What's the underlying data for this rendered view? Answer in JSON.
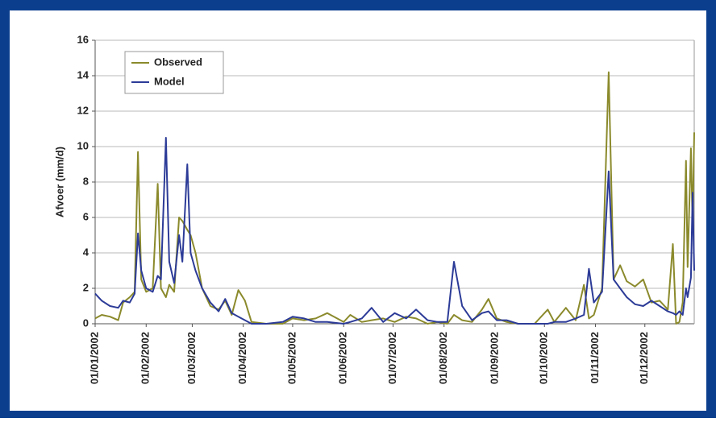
{
  "chart_data": {
    "type": "line",
    "y_label": "Afvoer (mm/d)",
    "x": [
      "01/01/2002",
      "05/01/2002",
      "10/01/2002",
      "15/01/2002",
      "18/01/2002",
      "22/01/2002",
      "25/01/2002",
      "27/01/2002",
      "29/01/2002",
      "01/02/2002",
      "05/02/2002",
      "08/02/2002",
      "10/02/2002",
      "13/02/2002",
      "15/02/2002",
      "18/02/2002",
      "21/02/2002",
      "23/02/2002",
      "26/02/2002",
      "28/02/2002",
      "03/03/2002",
      "07/03/2002",
      "12/03/2002",
      "17/03/2002",
      "21/03/2002",
      "25/03/2002",
      "29/03/2002",
      "02/04/2002",
      "06/04/2002",
      "15/04/2002",
      "25/04/2002",
      "01/05/2002",
      "08/05/2002",
      "15/05/2002",
      "22/05/2002",
      "01/06/2002",
      "05/06/2002",
      "12/06/2002",
      "18/06/2002",
      "25/06/2002",
      "02/07/2002",
      "09/07/2002",
      "15/07/2002",
      "22/07/2002",
      "28/07/2002",
      "03/08/2002",
      "07/08/2002",
      "12/08/2002",
      "18/08/2002",
      "24/08/2002",
      "28/08/2002",
      "02/09/2002",
      "08/09/2002",
      "15/09/2002",
      "25/09/2002",
      "03/10/2002",
      "07/10/2002",
      "14/10/2002",
      "20/10/2002",
      "25/10/2002",
      "28/10/2002",
      "31/10/2002",
      "05/11/2002",
      "09/11/2002",
      "12/11/2002",
      "16/11/2002",
      "20/11/2002",
      "25/11/2002",
      "30/11/2002",
      "05/12/2002",
      "10/12/2002",
      "15/12/2002",
      "18/12/2002",
      "20/12/2002",
      "22/12/2002",
      "24/12/2002",
      "26/12/2002",
      "27/12/2002",
      "29/12/2002",
      "30/12/2002",
      "31/12/2002"
    ],
    "series": [
      {
        "name": "Observed",
        "color": "#8b8a2c",
        "values": [
          0.3,
          0.5,
          0.4,
          0.2,
          1.2,
          1.5,
          1.8,
          9.7,
          2.5,
          1.8,
          2.0,
          7.9,
          2.0,
          1.5,
          2.2,
          1.8,
          6.0,
          5.8,
          5.3,
          5.0,
          4.0,
          2.0,
          1.0,
          0.8,
          1.3,
          0.5,
          1.9,
          1.3,
          0.1,
          0,
          0,
          0.3,
          0.2,
          0.3,
          0.6,
          0.1,
          0.5,
          0.1,
          0.2,
          0.3,
          0.1,
          0.4,
          0.3,
          0,
          0.1,
          0,
          0.5,
          0.2,
          0.1,
          0.8,
          1.4,
          0.3,
          0.1,
          0,
          0,
          0.8,
          0.1,
          0.9,
          0.2,
          2.2,
          0.3,
          0.5,
          2.0,
          14.2,
          2.5,
          3.3,
          2.4,
          2.1,
          2.5,
          1.2,
          1.3,
          0.8,
          4.5,
          0,
          0.1,
          1.2,
          9.2,
          3.2,
          9.9,
          5.5,
          10.8
        ]
      },
      {
        "name": "Model",
        "color": "#2c3b97",
        "values": [
          1.7,
          1.3,
          1.0,
          0.9,
          1.3,
          1.2,
          1.7,
          5.1,
          3.0,
          2.0,
          1.8,
          2.7,
          2.5,
          10.5,
          3.5,
          2.3,
          5.0,
          3.5,
          9.0,
          4.0,
          3.0,
          2.0,
          1.2,
          0.7,
          1.4,
          0.6,
          0.4,
          0.2,
          0,
          0,
          0.1,
          0.4,
          0.3,
          0.1,
          0.1,
          0,
          0.1,
          0.3,
          0.9,
          0.1,
          0.6,
          0.3,
          0.8,
          0.2,
          0.1,
          0.1,
          3.5,
          1.0,
          0.2,
          0.6,
          0.7,
          0.2,
          0.2,
          0,
          0,
          0,
          0.1,
          0.1,
          0.3,
          0.5,
          3.1,
          1.2,
          1.8,
          8.6,
          2.5,
          2.0,
          1.5,
          1.1,
          1.0,
          1.3,
          1.0,
          0.7,
          0.6,
          0.5,
          0.7,
          0.5,
          2.0,
          1.5,
          2.6,
          7.4,
          3.0
        ]
      }
    ],
    "xlim": [
      "01/01/2002",
      "31/12/2002"
    ],
    "xticks": [
      "01/01/2002",
      "01/02/2002",
      "01/03/2002",
      "01/04/2002",
      "01/05/2002",
      "01/06/2002",
      "01/07/2002",
      "01/08/2002",
      "01/09/2002",
      "01/10/2002",
      "01/11/2002",
      "01/12/2002"
    ],
    "ylim": [
      0,
      16
    ],
    "yticks": [
      0,
      2,
      4,
      6,
      8,
      10,
      12,
      14,
      16
    ],
    "grid": true,
    "legend": "top-left"
  }
}
